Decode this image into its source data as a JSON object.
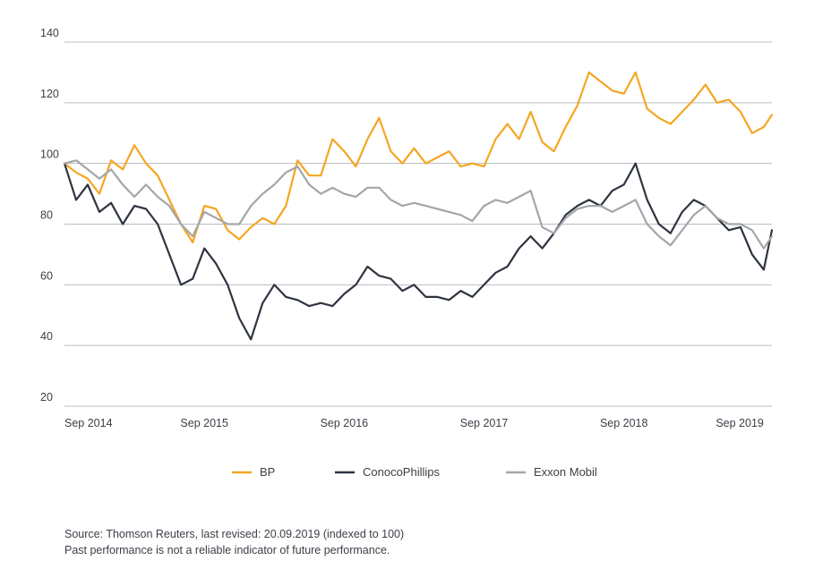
{
  "chart_data": {
    "type": "line",
    "title": "",
    "xlabel": "",
    "ylabel": "",
    "ylim": [
      20,
      140
    ],
    "yticks": [
      20,
      40,
      60,
      80,
      100,
      120,
      140
    ],
    "grid": "horizontal",
    "legend_position": "bottom",
    "x_start": "2014-09",
    "x_end": "2019-09",
    "x_ticks": [
      {
        "label": "Sep 2014",
        "month": 0
      },
      {
        "label": "Sep 2015",
        "month": 12
      },
      {
        "label": "Sep 2016",
        "month": 24
      },
      {
        "label": "Sep 2017",
        "month": 36
      },
      {
        "label": "Sep 2018",
        "month": 48
      },
      {
        "label": "Sep 2019",
        "month": 60
      }
    ],
    "series": [
      {
        "name": "BP",
        "color": "#f5a623",
        "points": [
          [
            0,
            100
          ],
          [
            1,
            97
          ],
          [
            2,
            95
          ],
          [
            3,
            90
          ],
          [
            4,
            101
          ],
          [
            5,
            98
          ],
          [
            6,
            106
          ],
          [
            7,
            100
          ],
          [
            8,
            96
          ],
          [
            9,
            88
          ],
          [
            10,
            80
          ],
          [
            11,
            74
          ],
          [
            12,
            86
          ],
          [
            13,
            85
          ],
          [
            14,
            78
          ],
          [
            15,
            75
          ],
          [
            16,
            79
          ],
          [
            17,
            82
          ],
          [
            18,
            80
          ],
          [
            19,
            86
          ],
          [
            20,
            101
          ],
          [
            21,
            96
          ],
          [
            22,
            96
          ],
          [
            23,
            108
          ],
          [
            24,
            104
          ],
          [
            25,
            99
          ],
          [
            26,
            108
          ],
          [
            27,
            115
          ],
          [
            28,
            104
          ],
          [
            29,
            100
          ],
          [
            30,
            105
          ],
          [
            31,
            100
          ],
          [
            32,
            102
          ],
          [
            33,
            104
          ],
          [
            34,
            99
          ],
          [
            35,
            100
          ],
          [
            36,
            99
          ],
          [
            37,
            108
          ],
          [
            38,
            113
          ],
          [
            39,
            108
          ],
          [
            40,
            117
          ],
          [
            41,
            107
          ],
          [
            42,
            104
          ],
          [
            43,
            112
          ],
          [
            44,
            119
          ],
          [
            45,
            130
          ],
          [
            46,
            127
          ],
          [
            47,
            124
          ],
          [
            48,
            123
          ],
          [
            49,
            130
          ],
          [
            50,
            118
          ],
          [
            51,
            115
          ],
          [
            52,
            113
          ],
          [
            53,
            117
          ],
          [
            54,
            121
          ],
          [
            55,
            126
          ],
          [
            56,
            120
          ],
          [
            57,
            121
          ],
          [
            58,
            117
          ],
          [
            59,
            110
          ],
          [
            60,
            112
          ],
          [
            60.7,
            116
          ]
        ]
      },
      {
        "name": "ConocoPhillips",
        "color": "#2e3440",
        "points": [
          [
            0,
            100
          ],
          [
            1,
            88
          ],
          [
            2,
            93
          ],
          [
            3,
            84
          ],
          [
            4,
            87
          ],
          [
            5,
            80
          ],
          [
            6,
            86
          ],
          [
            7,
            85
          ],
          [
            8,
            80
          ],
          [
            9,
            70
          ],
          [
            10,
            60
          ],
          [
            11,
            62
          ],
          [
            12,
            72
          ],
          [
            13,
            67
          ],
          [
            14,
            60
          ],
          [
            15,
            49
          ],
          [
            16,
            42
          ],
          [
            17,
            54
          ],
          [
            18,
            60
          ],
          [
            19,
            56
          ],
          [
            20,
            55
          ],
          [
            21,
            53
          ],
          [
            22,
            54
          ],
          [
            23,
            53
          ],
          [
            24,
            57
          ],
          [
            25,
            60
          ],
          [
            26,
            66
          ],
          [
            27,
            63
          ],
          [
            28,
            62
          ],
          [
            29,
            58
          ],
          [
            30,
            60
          ],
          [
            31,
            56
          ],
          [
            32,
            56
          ],
          [
            33,
            55
          ],
          [
            34,
            58
          ],
          [
            35,
            56
          ],
          [
            36,
            60
          ],
          [
            37,
            64
          ],
          [
            38,
            66
          ],
          [
            39,
            72
          ],
          [
            40,
            76
          ],
          [
            41,
            72
          ],
          [
            42,
            77
          ],
          [
            43,
            83
          ],
          [
            44,
            86
          ],
          [
            45,
            88
          ],
          [
            46,
            86
          ],
          [
            47,
            91
          ],
          [
            48,
            93
          ],
          [
            49,
            100
          ],
          [
            50,
            88
          ],
          [
            51,
            80
          ],
          [
            52,
            77
          ],
          [
            53,
            84
          ],
          [
            54,
            88
          ],
          [
            55,
            86
          ],
          [
            56,
            82
          ],
          [
            57,
            78
          ],
          [
            58,
            79
          ],
          [
            59,
            70
          ],
          [
            60,
            65
          ],
          [
            60.7,
            78
          ]
        ]
      },
      {
        "name": "Exxon Mobil",
        "color": "#a3a6ab",
        "points": [
          [
            0,
            100
          ],
          [
            1,
            101
          ],
          [
            2,
            98
          ],
          [
            3,
            95
          ],
          [
            4,
            98
          ],
          [
            5,
            93
          ],
          [
            6,
            89
          ],
          [
            7,
            93
          ],
          [
            8,
            89
          ],
          [
            9,
            86
          ],
          [
            10,
            80
          ],
          [
            11,
            76
          ],
          [
            12,
            84
          ],
          [
            13,
            82
          ],
          [
            14,
            80
          ],
          [
            15,
            80
          ],
          [
            16,
            86
          ],
          [
            17,
            90
          ],
          [
            18,
            93
          ],
          [
            19,
            97
          ],
          [
            20,
            99
          ],
          [
            21,
            93
          ],
          [
            22,
            90
          ],
          [
            23,
            92
          ],
          [
            24,
            90
          ],
          [
            25,
            89
          ],
          [
            26,
            92
          ],
          [
            27,
            92
          ],
          [
            28,
            88
          ],
          [
            29,
            86
          ],
          [
            30,
            87
          ],
          [
            31,
            86
          ],
          [
            32,
            85
          ],
          [
            33,
            84
          ],
          [
            34,
            83
          ],
          [
            35,
            81
          ],
          [
            36,
            86
          ],
          [
            37,
            88
          ],
          [
            38,
            87
          ],
          [
            39,
            89
          ],
          [
            40,
            91
          ],
          [
            41,
            79
          ],
          [
            42,
            77
          ],
          [
            43,
            82
          ],
          [
            44,
            85
          ],
          [
            45,
            86
          ],
          [
            46,
            86
          ],
          [
            47,
            84
          ],
          [
            48,
            86
          ],
          [
            49,
            88
          ],
          [
            50,
            80
          ],
          [
            51,
            76
          ],
          [
            52,
            73
          ],
          [
            53,
            78
          ],
          [
            54,
            83
          ],
          [
            55,
            86
          ],
          [
            56,
            82
          ],
          [
            57,
            80
          ],
          [
            58,
            80
          ],
          [
            59,
            78
          ],
          [
            60,
            72
          ],
          [
            60.7,
            76
          ]
        ]
      }
    ]
  },
  "notes": {
    "source": "Source: Thomson Reuters, last revised: 20.09.2019 (indexed to 100)",
    "disclaimer": "Past performance is not a reliable indicator of future performance."
  }
}
